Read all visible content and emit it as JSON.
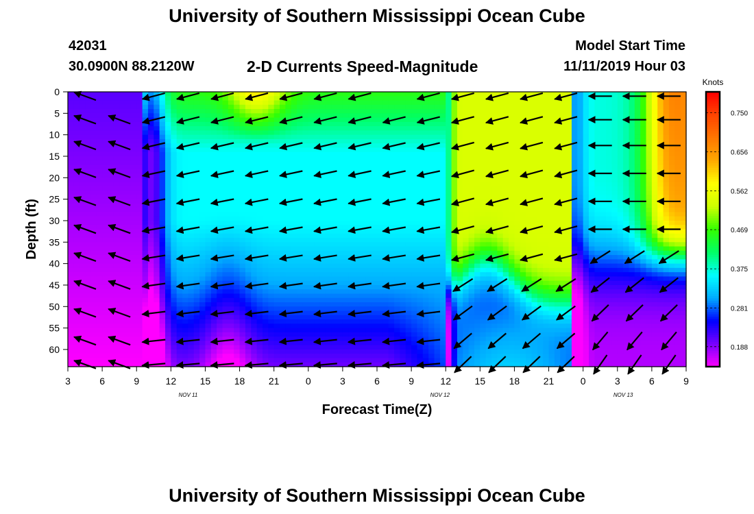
{
  "header": {
    "title": "University of Southern Mississippi Ocean Cube",
    "station": "42031",
    "coords": "30.0900N 88.2120W",
    "subtitle": "2-D Currents Speed-Magnitude",
    "model_start_label": "Model Start Time",
    "model_start_value": "11/11/2019 Hour 03"
  },
  "footer": {
    "title": "University of Southern Mississippi Ocean Cube"
  },
  "chart_data": {
    "type": "heatmap",
    "xlabel": "Forecast Time(Z)",
    "ylabel": "Depth (ft)",
    "colorbar_label": "Knots",
    "x_tick_labels": [
      "3",
      "6",
      "9",
      "12",
      "15",
      "18",
      "21",
      "0",
      "3",
      "6",
      "9",
      "12",
      "15",
      "18",
      "21",
      "0",
      "3",
      "6",
      "9"
    ],
    "date_labels": [
      {
        "text": "NOV 11",
        "at_hour": 13.5
      },
      {
        "text": "NOV 12",
        "at_hour": 35.5
      },
      {
        "text": "NOV 13",
        "at_hour": 51.5
      }
    ],
    "xlim_hours": [
      3,
      57
    ],
    "y_ticks": [
      0,
      5,
      10,
      15,
      20,
      25,
      30,
      35,
      40,
      45,
      50,
      55,
      60
    ],
    "ylim": [
      0,
      64
    ],
    "y_inverted": true,
    "colorbar_ticks": [
      0.188,
      0.281,
      0.375,
      0.469,
      0.562,
      0.656,
      0.75
    ],
    "vmin": 0.14,
    "vmax": 0.8,
    "colormap": [
      "#ff00ff",
      "#7a00ff",
      "#0000ff",
      "#00aaff",
      "#00ffff",
      "#00ff66",
      "#33ff00",
      "#ccff00",
      "#ffff00",
      "#ffaa00",
      "#ff7700",
      "#ff4400",
      "#ff0000"
    ],
    "grid": false
  }
}
